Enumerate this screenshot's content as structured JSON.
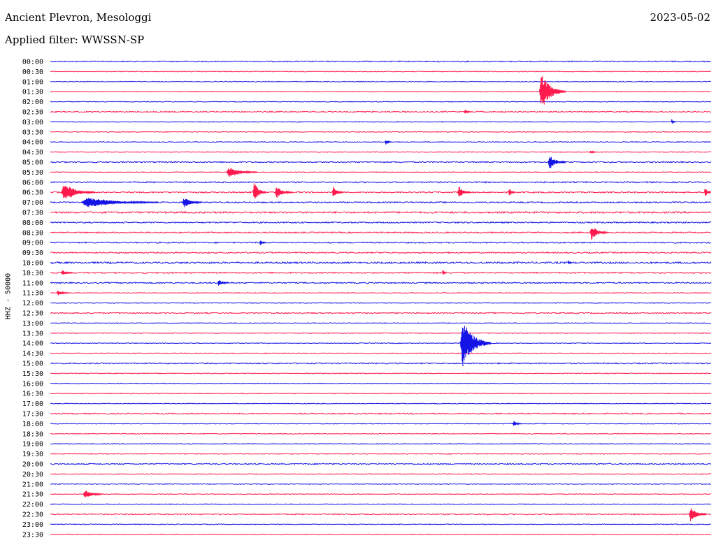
{
  "header": {
    "station": "Ancient Plevron, Mesologgi",
    "date": "2023-05-02",
    "filter": "Applied filter: WWSSN-SP"
  },
  "chart_data": {
    "type": "line",
    "ylabel": "HHZ - 50000",
    "colors": {
      "even": "#1414e6",
      "odd": "#ff1a4d"
    },
    "row_labels": [
      "00:00",
      "00:30",
      "01:00",
      "01:30",
      "02:00",
      "02:30",
      "03:00",
      "03:30",
      "04:00",
      "04:30",
      "05:00",
      "05:30",
      "06:00",
      "06:30",
      "07:00",
      "07:30",
      "08:00",
      "08:30",
      "09:00",
      "09:30",
      "10:00",
      "10:30",
      "11:00",
      "11:30",
      "12:00",
      "12:30",
      "13:00",
      "13:30",
      "14:00",
      "14:30",
      "15:00",
      "15:30",
      "16:00",
      "16:30",
      "17:00",
      "17:30",
      "18:00",
      "18:30",
      "19:00",
      "19:30",
      "20:00",
      "20:30",
      "21:00",
      "21:30",
      "22:00",
      "22:30",
      "23:00",
      "23:30"
    ],
    "events": [
      {
        "row": "01:30",
        "minute": 22.2,
        "amplitude": 26,
        "duration_min": 1.2
      },
      {
        "row": "02:30",
        "minute": 18.8,
        "amplitude": 4,
        "duration_min": 0.3
      },
      {
        "row": "03:00",
        "minute": 28.2,
        "amplitude": 4,
        "duration_min": 0.2
      },
      {
        "row": "04:00",
        "minute": 15.2,
        "amplitude": 4,
        "duration_min": 0.3
      },
      {
        "row": "04:30",
        "minute": 24.5,
        "amplitude": 3,
        "duration_min": 0.3
      },
      {
        "row": "05:00",
        "minute": 22.6,
        "amplitude": 11,
        "duration_min": 0.8
      },
      {
        "row": "05:30",
        "minute": 8.0,
        "amplitude": 8,
        "duration_min": 1.4
      },
      {
        "row": "06:30",
        "minute": 0.5,
        "amplitude": 14,
        "duration_min": 1.5
      },
      {
        "row": "06:30",
        "minute": 9.2,
        "amplitude": 16,
        "duration_min": 0.6
      },
      {
        "row": "06:30",
        "minute": 10.2,
        "amplitude": 9,
        "duration_min": 0.8
      },
      {
        "row": "06:30",
        "minute": 12.8,
        "amplitude": 9,
        "duration_min": 0.5
      },
      {
        "row": "06:30",
        "minute": 18.5,
        "amplitude": 9,
        "duration_min": 0.6
      },
      {
        "row": "06:30",
        "minute": 20.8,
        "amplitude": 8,
        "duration_min": 0.3
      },
      {
        "row": "06:30",
        "minute": 29.7,
        "amplitude": 9,
        "duration_min": 0.3
      },
      {
        "row": "07:00",
        "minute": 1.4,
        "amplitude": 8,
        "duration_min": 3.5
      },
      {
        "row": "07:00",
        "minute": 6.0,
        "amplitude": 8,
        "duration_min": 0.9
      },
      {
        "row": "08:30",
        "minute": 24.5,
        "amplitude": 11,
        "duration_min": 0.8
      },
      {
        "row": "09:00",
        "minute": 9.5,
        "amplitude": 5,
        "duration_min": 0.3
      },
      {
        "row": "10:00",
        "minute": 23.5,
        "amplitude": 4,
        "duration_min": 0.2
      },
      {
        "row": "10:30",
        "minute": 0.5,
        "amplitude": 4,
        "duration_min": 0.5
      },
      {
        "row": "10:30",
        "minute": 17.8,
        "amplitude": 5,
        "duration_min": 0.2
      },
      {
        "row": "11:00",
        "minute": 7.6,
        "amplitude": 5,
        "duration_min": 0.5
      },
      {
        "row": "11:30",
        "minute": 0.3,
        "amplitude": 4,
        "duration_min": 0.6
      },
      {
        "row": "14:00",
        "minute": 18.6,
        "amplitude": 35,
        "duration_min": 1.4
      },
      {
        "row": "18:00",
        "minute": 21.0,
        "amplitude": 5,
        "duration_min": 0.4
      },
      {
        "row": "21:30",
        "minute": 1.5,
        "amplitude": 7,
        "duration_min": 0.9
      },
      {
        "row": "22:30",
        "minute": 29.0,
        "amplitude": 11,
        "duration_min": 0.8
      }
    ]
  }
}
